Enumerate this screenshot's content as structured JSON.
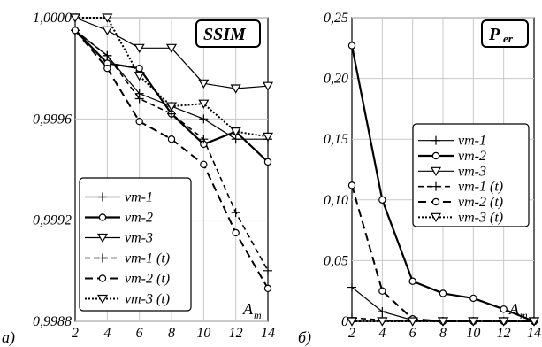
{
  "chart_data": [
    {
      "type": "line",
      "panel_label": "а)",
      "title": "SSIM",
      "xlabel": "A",
      "xlabel_sub": "m",
      "x": [
        2,
        4,
        6,
        8,
        10,
        12,
        14
      ],
      "xticks": [
        "2",
        "4",
        "6",
        "8",
        "10",
        "12",
        "14"
      ],
      "ylim": [
        0.9988,
        1.0
      ],
      "yticks": [
        {
          "value": 0.9988,
          "label": "0,9988"
        },
        {
          "value": 0.9992,
          "label": "0,9992"
        },
        {
          "value": 0.9996,
          "label": "0,9996"
        },
        {
          "value": 1.0,
          "label": "1,0000"
        }
      ],
      "grid": true,
      "legend_position": "bottom-left",
      "series": [
        {
          "name": "vm-1",
          "values": [
            0.99995,
            0.99985,
            0.9997,
            0.99965,
            0.9996,
            0.99952,
            0.99952
          ]
        },
        {
          "name": "vm-2",
          "values": [
            0.99995,
            0.99982,
            0.9998,
            0.99962,
            0.9995,
            0.99955,
            0.99943
          ]
        },
        {
          "name": "vm-3",
          "values": [
            1.0,
            0.99995,
            0.99988,
            0.99988,
            0.99974,
            0.99972,
            0.99973
          ]
        },
        {
          "name": "vm-1 (t)",
          "values": [
            0.99995,
            0.99985,
            0.99968,
            0.99962,
            0.99952,
            0.99923,
            0.999
          ]
        },
        {
          "name": "vm-2 (t)",
          "values": [
            0.99995,
            0.9998,
            0.99959,
            0.99952,
            0.99942,
            0.99915,
            0.99893
          ]
        },
        {
          "name": "vm-3 (t)",
          "values": [
            1.0,
            1.0,
            0.99977,
            0.99965,
            0.99966,
            0.99955,
            0.99953
          ]
        }
      ]
    },
    {
      "type": "line",
      "panel_label": "б)",
      "title": "P",
      "title_sub": "er",
      "xlabel": "A",
      "xlabel_sub": "m",
      "x": [
        2,
        4,
        6,
        8,
        10,
        12,
        14
      ],
      "xticks": [
        "2",
        "4",
        "6",
        "8",
        "10",
        "12",
        "14"
      ],
      "ylim": [
        0,
        0.25
      ],
      "yticks": [
        {
          "value": 0,
          "label": "0"
        },
        {
          "value": 0.05,
          "label": "0,05"
        },
        {
          "value": 0.1,
          "label": "0,10"
        },
        {
          "value": 0.15,
          "label": "0,15"
        },
        {
          "value": 0.2,
          "label": "0,20"
        },
        {
          "value": 0.25,
          "label": "0,25"
        }
      ],
      "grid": true,
      "legend_position": "middle-right",
      "series": [
        {
          "name": "vm-1",
          "values": [
            0.028,
            0.008,
            0.001,
            0.0,
            0.0,
            0.0,
            0.0
          ]
        },
        {
          "name": "vm-2",
          "values": [
            0.227,
            0.1,
            0.033,
            0.023,
            0.019,
            0.01,
            0.0
          ]
        },
        {
          "name": "vm-3",
          "values": [
            0.0,
            0.0,
            0.0,
            0.0,
            0.0,
            0.0,
            0.0
          ]
        },
        {
          "name": "vm-1 (t)",
          "values": [
            0.003,
            0.001,
            0.0,
            0.0,
            0.0,
            0.0,
            0.0
          ]
        },
        {
          "name": "vm-2 (t)",
          "values": [
            0.112,
            0.025,
            0.002,
            0.0,
            0.0,
            0.0,
            0.0
          ]
        },
        {
          "name": "vm-3 (t)",
          "values": [
            0.0,
            0.0,
            0.0,
            0.0,
            0.0,
            0.0,
            0.0
          ]
        }
      ]
    }
  ]
}
